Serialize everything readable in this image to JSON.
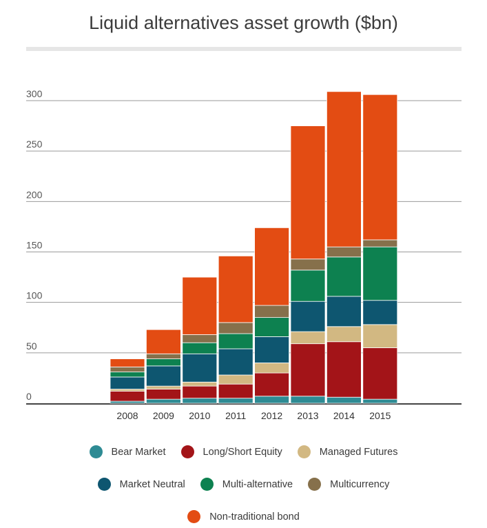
{
  "chart_data": {
    "type": "bar",
    "stacked": true,
    "title": "Liquid alternatives asset growth ($bn)",
    "xlabel": "",
    "ylabel": "",
    "ylim": [
      0,
      300
    ],
    "yticks": [
      0,
      50,
      100,
      150,
      200,
      250,
      300
    ],
    "grid": true,
    "legend_position": "bottom",
    "categories": [
      "2008",
      "2009",
      "2010",
      "2011",
      "2012",
      "2013",
      "2014",
      "2015"
    ],
    "series": [
      {
        "name": "Bear Market",
        "color": "#2e8b94",
        "values": [
          2,
          4,
          5,
          5,
          7,
          7,
          6,
          4
        ]
      },
      {
        "name": "Long/Short Equity",
        "color": "#a31418",
        "values": [
          10,
          10,
          12,
          14,
          23,
          52,
          55,
          51
        ]
      },
      {
        "name": "Managed Futures",
        "color": "#d2b882",
        "values": [
          2,
          3,
          4,
          9,
          10,
          12,
          15,
          23
        ]
      },
      {
        "name": "Market Neutral",
        "color": "#0e5670",
        "values": [
          12,
          20,
          28,
          26,
          26,
          30,
          30,
          24
        ]
      },
      {
        "name": "Multi-alternative",
        "color": "#0d8150",
        "values": [
          5,
          7,
          11,
          15,
          19,
          31,
          39,
          53
        ]
      },
      {
        "name": "Multicurrency",
        "color": "#86704b",
        "values": [
          5,
          5,
          8,
          11,
          12,
          11,
          10,
          7
        ]
      },
      {
        "name": "Non-traditional bond",
        "color": "#e34c13",
        "values": [
          8,
          24,
          57,
          66,
          77,
          132,
          154,
          144
        ]
      }
    ]
  },
  "legend_rows": [
    [
      0,
      1,
      2
    ],
    [
      3,
      4,
      5
    ],
    [
      6
    ]
  ]
}
